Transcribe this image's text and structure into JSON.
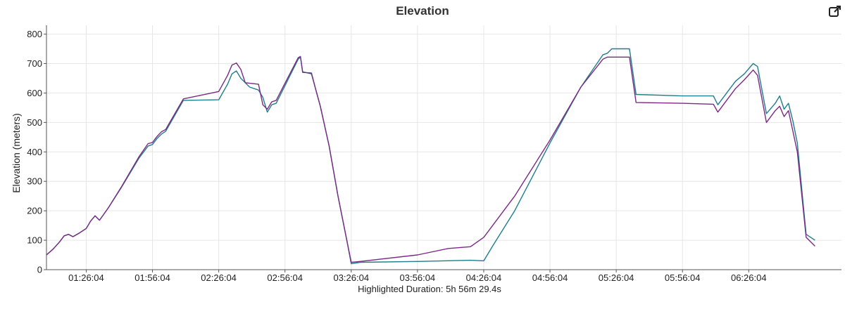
{
  "chart_data": {
    "type": "line",
    "title": "Elevation",
    "ylabel": "Elevation (meters)",
    "xlabel": "",
    "footer": "Highlighted Duration: 5h 56m 29.4s",
    "ylim": [
      0,
      830
    ],
    "yticks": [
      0,
      100,
      200,
      300,
      400,
      500,
      600,
      700,
      800
    ],
    "xlim": [
      "01:08:04",
      "07:08:04"
    ],
    "xticks": [
      "01:26:04",
      "01:56:04",
      "02:26:04",
      "02:56:04",
      "03:26:04",
      "03:56:04",
      "04:26:04",
      "04:56:04",
      "05:26:04",
      "05:56:04",
      "06:26:04"
    ],
    "grid": true,
    "legend": "none",
    "series": [
      {
        "color": "#1f7d8c",
        "points": [
          [
            "01:08:04",
            50
          ],
          [
            "01:11:04",
            70
          ],
          [
            "01:14:04",
            95
          ],
          [
            "01:16:04",
            115
          ],
          [
            "01:18:04",
            120
          ],
          [
            "01:20:04",
            112
          ],
          [
            "01:23:04",
            125
          ],
          [
            "01:26:04",
            140
          ],
          [
            "01:28:04",
            165
          ],
          [
            "01:30:04",
            183
          ],
          [
            "01:32:04",
            168
          ],
          [
            "01:36:04",
            210
          ],
          [
            "01:42:04",
            280
          ],
          [
            "01:50:04",
            380
          ],
          [
            "01:54:04",
            420
          ],
          [
            "01:56:04",
            425
          ],
          [
            "01:58:04",
            445
          ],
          [
            "02:00:04",
            460
          ],
          [
            "02:02:04",
            470
          ],
          [
            "02:10:04",
            575
          ],
          [
            "02:26:04",
            577
          ],
          [
            "02:30:04",
            630
          ],
          [
            "02:32:04",
            665
          ],
          [
            "02:34:04",
            675
          ],
          [
            "02:36:04",
            650
          ],
          [
            "02:40:04",
            620
          ],
          [
            "02:44:04",
            610
          ],
          [
            "02:46:04",
            585
          ],
          [
            "02:48:04",
            535
          ],
          [
            "02:50:04",
            560
          ],
          [
            "02:52:04",
            565
          ],
          [
            "03:02:04",
            715
          ],
          [
            "03:03:04",
            722
          ],
          [
            "03:04:04",
            672
          ],
          [
            "03:08:04",
            665
          ],
          [
            "03:10:04",
            610
          ],
          [
            "03:12:04",
            555
          ],
          [
            "03:16:04",
            420
          ],
          [
            "03:20:04",
            250
          ],
          [
            "03:24:04",
            100
          ],
          [
            "03:26:04",
            20
          ],
          [
            "03:30:04",
            25
          ],
          [
            "03:56:04",
            28
          ],
          [
            "04:20:04",
            32
          ],
          [
            "04:26:04",
            30
          ],
          [
            "04:30:04",
            80
          ],
          [
            "04:40:04",
            200
          ],
          [
            "04:56:04",
            430
          ],
          [
            "05:10:04",
            620
          ],
          [
            "05:20:04",
            730
          ],
          [
            "05:22:04",
            735
          ],
          [
            "05:24:04",
            750
          ],
          [
            "05:32:04",
            750
          ],
          [
            "05:35:04",
            595
          ],
          [
            "05:56:04",
            590
          ],
          [
            "06:10:04",
            590
          ],
          [
            "06:12:04",
            560
          ],
          [
            "06:16:04",
            600
          ],
          [
            "06:20:04",
            640
          ],
          [
            "06:24:04",
            665
          ],
          [
            "06:28:04",
            700
          ],
          [
            "06:30:04",
            690
          ],
          [
            "06:34:04",
            530
          ],
          [
            "06:38:04",
            565
          ],
          [
            "06:40:04",
            590
          ],
          [
            "06:42:04",
            545
          ],
          [
            "06:44:04",
            565
          ],
          [
            "06:46:04",
            505
          ],
          [
            "06:48:04",
            430
          ],
          [
            "06:52:04",
            120
          ],
          [
            "06:56:04",
            100
          ]
        ]
      },
      {
        "color": "#7a2a85",
        "points": [
          [
            "01:08:04",
            50
          ],
          [
            "01:11:04",
            70
          ],
          [
            "01:14:04",
            95
          ],
          [
            "01:16:04",
            115
          ],
          [
            "01:18:04",
            120
          ],
          [
            "01:20:04",
            112
          ],
          [
            "01:23:04",
            125
          ],
          [
            "01:26:04",
            140
          ],
          [
            "01:28:04",
            165
          ],
          [
            "01:30:04",
            183
          ],
          [
            "01:32:04",
            168
          ],
          [
            "01:36:04",
            210
          ],
          [
            "01:42:04",
            282
          ],
          [
            "01:50:04",
            385
          ],
          [
            "01:54:04",
            428
          ],
          [
            "01:56:04",
            432
          ],
          [
            "01:58:04",
            452
          ],
          [
            "02:00:04",
            468
          ],
          [
            "02:02:04",
            476
          ],
          [
            "02:10:04",
            580
          ],
          [
            "02:26:04",
            605
          ],
          [
            "02:30:04",
            660
          ],
          [
            "02:32:04",
            695
          ],
          [
            "02:34:04",
            702
          ],
          [
            "02:36:04",
            680
          ],
          [
            "02:38:04",
            635
          ],
          [
            "02:44:04",
            630
          ],
          [
            "02:46:04",
            560
          ],
          [
            "02:48:04",
            545
          ],
          [
            "02:50:04",
            570
          ],
          [
            "02:52:04",
            575
          ],
          [
            "03:02:04",
            720
          ],
          [
            "03:03:04",
            724
          ],
          [
            "03:04:04",
            670
          ],
          [
            "03:08:04",
            668
          ],
          [
            "03:10:04",
            610
          ],
          [
            "03:12:04",
            555
          ],
          [
            "03:16:04",
            420
          ],
          [
            "03:20:04",
            250
          ],
          [
            "03:24:04",
            100
          ],
          [
            "03:26:04",
            25
          ],
          [
            "03:30:04",
            28
          ],
          [
            "03:56:04",
            50
          ],
          [
            "04:10:04",
            72
          ],
          [
            "04:20:04",
            78
          ],
          [
            "04:26:04",
            110
          ],
          [
            "04:40:04",
            250
          ],
          [
            "04:56:04",
            440
          ],
          [
            "05:10:04",
            620
          ],
          [
            "05:20:04",
            715
          ],
          [
            "05:22:04",
            722
          ],
          [
            "05:32:04",
            722
          ],
          [
            "05:35:04",
            568
          ],
          [
            "05:56:04",
            565
          ],
          [
            "06:10:04",
            562
          ],
          [
            "06:12:04",
            535
          ],
          [
            "06:16:04",
            575
          ],
          [
            "06:20:04",
            615
          ],
          [
            "06:24:04",
            645
          ],
          [
            "06:28:04",
            678
          ],
          [
            "06:30:04",
            660
          ],
          [
            "06:34:04",
            500
          ],
          [
            "06:38:04",
            540
          ],
          [
            "06:40:04",
            555
          ],
          [
            "06:42:04",
            520
          ],
          [
            "06:44:04",
            540
          ],
          [
            "06:46:04",
            470
          ],
          [
            "06:48:04",
            400
          ],
          [
            "06:52:04",
            110
          ],
          [
            "06:56:04",
            80
          ]
        ]
      }
    ]
  }
}
